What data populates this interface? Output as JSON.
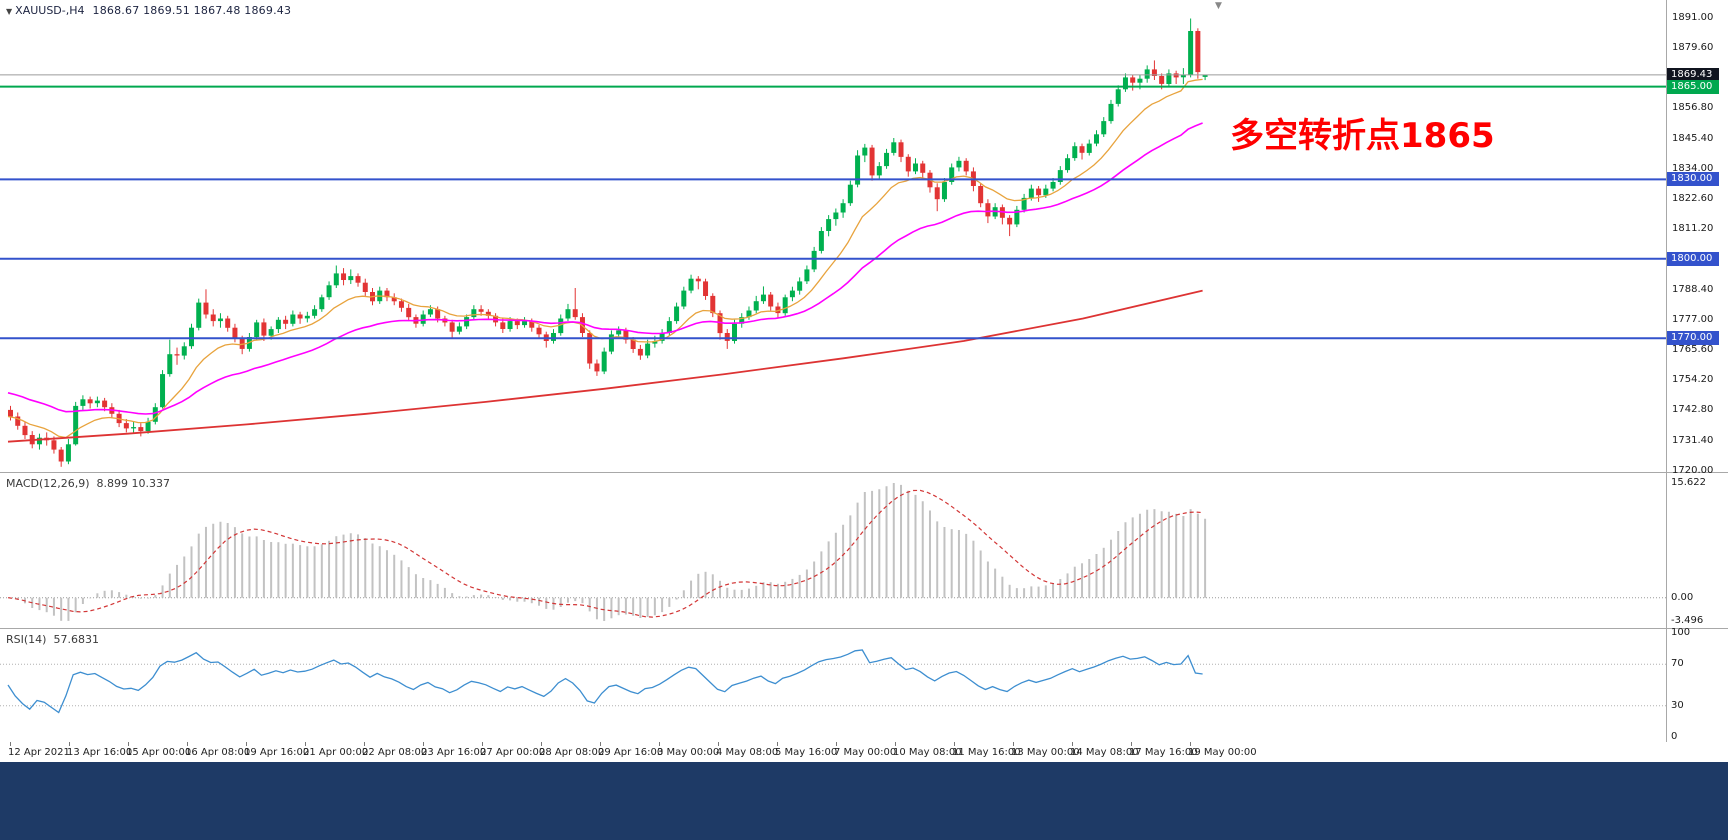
{
  "symbol_line": {
    "expander": "▼",
    "symbol": "XAUUSD-,H4",
    "ohlc": "1868.67 1869.51 1867.48 1869.43"
  },
  "annotation": {
    "text": "多空转折点1865",
    "color": "#ff0000"
  },
  "bottom_bar_color": "#1e3a66",
  "chart_data": {
    "type": "candlestick",
    "symbol": "XAUUSD-",
    "timeframe": "H4",
    "current_bar": {
      "open": 1868.67,
      "high": 1869.51,
      "low": 1867.48,
      "close": 1869.43
    },
    "ylim": [
      1720.3,
      1897.7
    ],
    "style": {
      "up_color": "#00b04f",
      "down_color": "#e23434",
      "bg": "#ffffff"
    },
    "price_axis": {
      "ticks": [
        "1891.00",
        "1879.60",
        "1868.20",
        "1856.80",
        "1845.40",
        "1834.00",
        "1822.60",
        "1811.20",
        "1799.80",
        "1788.40",
        "1777.00",
        "1765.60",
        "1754.20",
        "1742.80",
        "1731.40",
        "1720.00"
      ]
    },
    "levels": [
      {
        "label": "1869.43",
        "price": 1869.43,
        "tag_bg": "#10141f",
        "line_color": "#9b9b9b",
        "width": 1
      },
      {
        "label": "1865.00",
        "price": 1865.0,
        "tag_bg": "#00a84f",
        "line_color": "#00a84f",
        "width": 2
      },
      {
        "label": "1830.00",
        "price": 1830.0,
        "tag_bg": "#3352cc",
        "line_color": "#3352cc",
        "width": 2
      },
      {
        "label": "1800.00",
        "price": 1800.0,
        "tag_bg": "#3352cc",
        "line_color": "#3352cc",
        "width": 2
      },
      {
        "label": "1770.00",
        "price": 1770.0,
        "tag_bg": "#3352cc",
        "line_color": "#3352cc",
        "width": 2
      }
    ],
    "moving_averages": {
      "fast": {
        "period": 12,
        "color": "#e8a33d"
      },
      "medium": {
        "period": 34,
        "seed": 1750,
        "color": "#ff00ff"
      },
      "slow": {
        "color": "#dd3333",
        "anchors": [
          1731,
          1734,
          1737.5,
          1741.5,
          1746,
          1751,
          1756.5,
          1762.5,
          1769,
          1777.5,
          1788
        ]
      }
    },
    "time_labels": [
      "12 Apr 2021",
      "13 Apr 16:00",
      "15 Apr 00:00",
      "16 Apr 08:00",
      "19 Apr 16:00",
      "21 Apr 00:00",
      "22 Apr 08:00",
      "23 Apr 16:00",
      "27 Apr 00:00",
      "28 Apr 08:00",
      "29 Apr 16:00",
      "3 May 00:00",
      "4 May 08:00",
      "5 May 16:00",
      "7 May 00:00",
      "10 May 08:00",
      "11 May 16:00",
      "13 May 00:00",
      "14 May 08:00",
      "17 May 16:00",
      "19 May 00:00"
    ],
    "indicators": {
      "macd": {
        "label": "MACD(12,26,9)",
        "values_text": "8.899 10.337",
        "params": [
          12,
          26,
          9
        ],
        "axis_labels": [
          "15.622",
          "0.00",
          "-3.496"
        ],
        "histogram_color": "#c2c2c2",
        "signal_color": "#d23636"
      },
      "rsi": {
        "label": "RSI(14)",
        "value_text": "57.6831",
        "period": 14,
        "levels": [
          70,
          30
        ],
        "axis_labels": [
          "100",
          "70",
          "30",
          "0"
        ],
        "line_color": "#3d8ed0",
        "levels_color": "#b0b0b0"
      }
    },
    "candles": [
      [
        1743.0,
        1744.5,
        1739.0,
        1740.5
      ],
      [
        1740.5,
        1742.0,
        1735.5,
        1737.0
      ],
      [
        1737.0,
        1738.5,
        1732.0,
        1733.5
      ],
      [
        1733.5,
        1735.0,
        1728.5,
        1730.0
      ],
      [
        1730.0,
        1734.0,
        1728.0,
        1732.5
      ],
      [
        1732.5,
        1734.5,
        1729.5,
        1731.5
      ],
      [
        1731.5,
        1733.0,
        1726.5,
        1728.0
      ],
      [
        1728.0,
        1729.0,
        1721.5,
        1723.5
      ],
      [
        1723.5,
        1732.0,
        1722.5,
        1730.0
      ],
      [
        1730.0,
        1746.0,
        1729.5,
        1744.5
      ],
      [
        1744.5,
        1748.5,
        1743.0,
        1747.0
      ],
      [
        1747.0,
        1748.0,
        1743.5,
        1745.5
      ],
      [
        1745.5,
        1748.0,
        1744.0,
        1746.5
      ],
      [
        1746.5,
        1747.5,
        1742.5,
        1744.0
      ],
      [
        1744.0,
        1745.5,
        1740.0,
        1741.5
      ],
      [
        1741.5,
        1743.0,
        1736.5,
        1738.0
      ],
      [
        1738.0,
        1739.5,
        1734.5,
        1736.0
      ],
      [
        1736.0,
        1738.5,
        1734.0,
        1736.5
      ],
      [
        1736.5,
        1738.0,
        1733.0,
        1735.0
      ],
      [
        1735.0,
        1740.0,
        1734.0,
        1738.5
      ],
      [
        1738.5,
        1745.5,
        1737.5,
        1744.0
      ],
      [
        1744.0,
        1758.0,
        1743.5,
        1756.5
      ],
      [
        1756.5,
        1769.5,
        1755.5,
        1764.0
      ],
      [
        1764.0,
        1766.5,
        1760.0,
        1763.5
      ],
      [
        1763.5,
        1768.5,
        1762.0,
        1767.0
      ],
      [
        1767.0,
        1775.5,
        1766.0,
        1774.0
      ],
      [
        1774.0,
        1785.0,
        1773.0,
        1783.5
      ],
      [
        1783.5,
        1788.5,
        1777.5,
        1779.0
      ],
      [
        1779.0,
        1781.0,
        1774.5,
        1776.5
      ],
      [
        1776.5,
        1779.5,
        1774.0,
        1777.5
      ],
      [
        1777.5,
        1778.5,
        1772.5,
        1774.0
      ],
      [
        1774.0,
        1775.5,
        1768.5,
        1770.0
      ],
      [
        1770.0,
        1771.0,
        1764.0,
        1766.0
      ],
      [
        1766.0,
        1772.0,
        1765.0,
        1770.5
      ],
      [
        1770.5,
        1777.0,
        1769.5,
        1776.0
      ],
      [
        1776.0,
        1777.5,
        1769.0,
        1771.0
      ],
      [
        1771.0,
        1774.5,
        1769.5,
        1773.5
      ],
      [
        1773.5,
        1778.0,
        1772.0,
        1777.0
      ],
      [
        1777.0,
        1778.5,
        1773.5,
        1775.5
      ],
      [
        1775.5,
        1780.5,
        1774.5,
        1779.0
      ],
      [
        1779.0,
        1780.0,
        1775.5,
        1777.5
      ],
      [
        1777.5,
        1780.0,
        1776.0,
        1778.5
      ],
      [
        1778.5,
        1782.5,
        1777.5,
        1781.0
      ],
      [
        1781.0,
        1786.5,
        1780.0,
        1785.5
      ],
      [
        1785.5,
        1791.5,
        1784.5,
        1790.0
      ],
      [
        1790.0,
        1797.5,
        1789.0,
        1794.5
      ],
      [
        1794.5,
        1796.5,
        1790.0,
        1792.0
      ],
      [
        1792.0,
        1796.0,
        1790.5,
        1793.5
      ],
      [
        1793.5,
        1794.5,
        1789.5,
        1791.0
      ],
      [
        1791.0,
        1792.5,
        1786.0,
        1787.5
      ],
      [
        1787.5,
        1789.0,
        1782.5,
        1784.0
      ],
      [
        1784.0,
        1789.5,
        1783.0,
        1788.0
      ],
      [
        1788.0,
        1789.0,
        1784.0,
        1785.5
      ],
      [
        1785.5,
        1787.0,
        1782.5,
        1784.0
      ],
      [
        1784.0,
        1785.0,
        1780.0,
        1781.5
      ],
      [
        1781.5,
        1783.0,
        1776.5,
        1778.0
      ],
      [
        1778.0,
        1779.0,
        1774.0,
        1775.5
      ],
      [
        1775.5,
        1780.5,
        1774.5,
        1779.0
      ],
      [
        1779.0,
        1782.5,
        1778.0,
        1781.0
      ],
      [
        1781.0,
        1782.0,
        1776.0,
        1777.5
      ],
      [
        1777.5,
        1778.5,
        1774.5,
        1776.0
      ],
      [
        1776.0,
        1777.0,
        1770.0,
        1772.5
      ],
      [
        1772.5,
        1776.0,
        1771.5,
        1774.5
      ],
      [
        1774.5,
        1779.0,
        1773.5,
        1778.0
      ],
      [
        1778.0,
        1782.5,
        1777.0,
        1781.0
      ],
      [
        1781.0,
        1782.5,
        1778.5,
        1780.0
      ],
      [
        1780.0,
        1781.0,
        1777.0,
        1778.5
      ],
      [
        1778.5,
        1779.5,
        1774.5,
        1776.0
      ],
      [
        1776.0,
        1777.5,
        1772.0,
        1773.5
      ],
      [
        1773.5,
        1778.0,
        1772.5,
        1776.5
      ],
      [
        1776.5,
        1777.5,
        1773.5,
        1775.0
      ],
      [
        1775.0,
        1778.0,
        1774.0,
        1776.5
      ],
      [
        1776.5,
        1777.5,
        1772.5,
        1774.0
      ],
      [
        1774.0,
        1775.0,
        1770.0,
        1771.5
      ],
      [
        1771.5,
        1772.5,
        1766.5,
        1769.0
      ],
      [
        1769.0,
        1773.5,
        1768.0,
        1772.0
      ],
      [
        1772.0,
        1779.0,
        1771.0,
        1777.5
      ],
      [
        1777.5,
        1783.0,
        1776.5,
        1781.0
      ],
      [
        1781.0,
        1789.0,
        1777.0,
        1778.0
      ],
      [
        1778.0,
        1779.5,
        1770.5,
        1772.0
      ],
      [
        1772.0,
        1773.0,
        1758.5,
        1760.5
      ],
      [
        1760.5,
        1762.0,
        1755.8,
        1757.5
      ],
      [
        1757.5,
        1766.5,
        1756.5,
        1765.0
      ],
      [
        1765.0,
        1773.0,
        1764.0,
        1771.5
      ],
      [
        1771.5,
        1774.5,
        1770.0,
        1773.0
      ],
      [
        1773.0,
        1774.0,
        1768.0,
        1769.5
      ],
      [
        1769.5,
        1770.5,
        1764.5,
        1766.0
      ],
      [
        1766.0,
        1767.5,
        1761.9,
        1763.5
      ],
      [
        1763.5,
        1769.5,
        1762.5,
        1768.0
      ],
      [
        1768.0,
        1771.0,
        1766.5,
        1769.0
      ],
      [
        1769.0,
        1773.5,
        1768.0,
        1772.0
      ],
      [
        1772.0,
        1778.0,
        1771.0,
        1776.5
      ],
      [
        1776.5,
        1783.5,
        1775.5,
        1782.0
      ],
      [
        1782.0,
        1789.5,
        1781.0,
        1788.0
      ],
      [
        1788.0,
        1794.0,
        1787.0,
        1792.5
      ],
      [
        1792.5,
        1793.5,
        1788.5,
        1791.5
      ],
      [
        1791.5,
        1792.5,
        1784.5,
        1786.0
      ],
      [
        1786.0,
        1787.0,
        1778.0,
        1779.5
      ],
      [
        1779.5,
        1780.5,
        1769.5,
        1772.0
      ],
      [
        1772.0,
        1773.5,
        1766.0,
        1769.0
      ],
      [
        1769.0,
        1777.0,
        1768.0,
        1775.5
      ],
      [
        1775.5,
        1779.5,
        1774.0,
        1778.0
      ],
      [
        1778.0,
        1782.0,
        1777.0,
        1780.5
      ],
      [
        1780.5,
        1786.0,
        1779.5,
        1784.0
      ],
      [
        1784.0,
        1789.6,
        1783.0,
        1786.5
      ],
      [
        1786.5,
        1787.5,
        1780.5,
        1782.0
      ],
      [
        1782.0,
        1783.5,
        1777.5,
        1779.5
      ],
      [
        1779.5,
        1786.5,
        1778.5,
        1785.5
      ],
      [
        1785.5,
        1789.5,
        1784.0,
        1788.0
      ],
      [
        1788.0,
        1793.0,
        1786.5,
        1791.5
      ],
      [
        1791.5,
        1797.5,
        1790.5,
        1796.0
      ],
      [
        1796.0,
        1804.5,
        1795.0,
        1803.0
      ],
      [
        1803.0,
        1812.0,
        1802.0,
        1810.5
      ],
      [
        1810.5,
        1816.5,
        1808.5,
        1815.0
      ],
      [
        1815.0,
        1819.0,
        1812.5,
        1817.5
      ],
      [
        1817.5,
        1822.5,
        1815.5,
        1821.0
      ],
      [
        1821.0,
        1829.5,
        1820.0,
        1828.0
      ],
      [
        1828.0,
        1841.0,
        1827.0,
        1839.0
      ],
      [
        1839.0,
        1843.4,
        1836.5,
        1842.0
      ],
      [
        1842.0,
        1843.0,
        1829.5,
        1831.5
      ],
      [
        1831.5,
        1836.5,
        1830.0,
        1835.0
      ],
      [
        1835.0,
        1841.5,
        1834.0,
        1840.0
      ],
      [
        1840.0,
        1845.6,
        1839.0,
        1844.0
      ],
      [
        1844.0,
        1845.0,
        1836.5,
        1838.5
      ],
      [
        1838.5,
        1839.5,
        1831.0,
        1833.0
      ],
      [
        1833.0,
        1838.0,
        1832.0,
        1836.0
      ],
      [
        1836.0,
        1837.0,
        1830.5,
        1832.5
      ],
      [
        1832.5,
        1833.5,
        1825.0,
        1827.0
      ],
      [
        1827.0,
        1828.5,
        1818.0,
        1822.5
      ],
      [
        1822.5,
        1830.5,
        1821.5,
        1829.0
      ],
      [
        1829.0,
        1836.0,
        1828.0,
        1834.5
      ],
      [
        1834.5,
        1838.5,
        1833.0,
        1837.0
      ],
      [
        1837.0,
        1838.0,
        1831.5,
        1833.0
      ],
      [
        1833.0,
        1834.5,
        1825.5,
        1827.5
      ],
      [
        1827.5,
        1828.5,
        1819.5,
        1821.0
      ],
      [
        1821.0,
        1822.5,
        1813.5,
        1816.0
      ],
      [
        1816.0,
        1821.0,
        1815.0,
        1819.5
      ],
      [
        1819.5,
        1820.5,
        1813.0,
        1815.5
      ],
      [
        1815.5,
        1816.5,
        1808.6,
        1813.0
      ],
      [
        1813.0,
        1820.0,
        1812.0,
        1818.5
      ],
      [
        1818.5,
        1824.5,
        1817.5,
        1823.0
      ],
      [
        1823.0,
        1828.0,
        1822.0,
        1826.5
      ],
      [
        1826.5,
        1827.5,
        1821.5,
        1824.0
      ],
      [
        1824.0,
        1828.0,
        1823.0,
        1826.5
      ],
      [
        1826.5,
        1830.5,
        1825.5,
        1829.0
      ],
      [
        1829.0,
        1835.0,
        1828.0,
        1833.5
      ],
      [
        1833.5,
        1839.5,
        1832.5,
        1838.0
      ],
      [
        1838.0,
        1844.0,
        1837.0,
        1842.5
      ],
      [
        1842.5,
        1843.5,
        1837.5,
        1840.0
      ],
      [
        1840.0,
        1845.0,
        1839.0,
        1843.5
      ],
      [
        1843.5,
        1848.5,
        1842.5,
        1847.0
      ],
      [
        1847.0,
        1853.5,
        1846.0,
        1852.0
      ],
      [
        1852.0,
        1860.0,
        1851.0,
        1858.5
      ],
      [
        1858.5,
        1865.5,
        1857.5,
        1864.0
      ],
      [
        1864.0,
        1870.0,
        1863.0,
        1868.5
      ],
      [
        1868.5,
        1869.5,
        1863.5,
        1866.5
      ],
      [
        1866.5,
        1869.5,
        1864.0,
        1868.0
      ],
      [
        1868.0,
        1873.0,
        1866.5,
        1871.5
      ],
      [
        1871.5,
        1874.9,
        1867.5,
        1869.0
      ],
      [
        1869.0,
        1870.0,
        1864.0,
        1866.0
      ],
      [
        1866.0,
        1871.5,
        1865.0,
        1870.0
      ],
      [
        1870.0,
        1871.0,
        1866.0,
        1868.5
      ],
      [
        1868.5,
        1872.0,
        1866.0,
        1869.5
      ],
      [
        1869.5,
        1890.7,
        1868.5,
        1886.0
      ],
      [
        1886.0,
        1887.0,
        1868.0,
        1870.5
      ],
      [
        1868.67,
        1869.51,
        1867.48,
        1869.43
      ]
    ]
  }
}
